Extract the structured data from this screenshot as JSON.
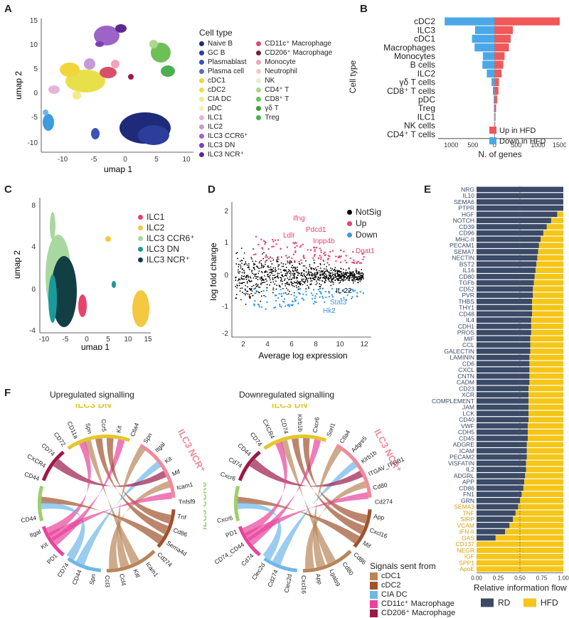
{
  "panels": {
    "A": {
      "label": "A",
      "xlabel": "umap 1",
      "ylabel": "umap 2",
      "xticks": [
        "-10",
        "-5",
        "0",
        "5",
        "10"
      ],
      "yticks": [
        "15",
        "10",
        "5",
        "0",
        "-5",
        "-10"
      ],
      "legend_title": "Cell type",
      "legend": [
        {
          "name": "Naive B",
          "color": "#1f2a7a"
        },
        {
          "name": "GC B",
          "color": "#2c3e99"
        },
        {
          "name": "Plasmablast",
          "color": "#3f51b5"
        },
        {
          "name": "Plasma cell",
          "color": "#5c6bc0"
        },
        {
          "name": "cDC1",
          "color": "#f2d43b"
        },
        {
          "name": "cDC2",
          "color": "#e8e04a"
        },
        {
          "name": "CIA DC",
          "color": "#f5ea8a"
        },
        {
          "name": "pDC",
          "color": "#f7f0b3"
        },
        {
          "name": "ILC1",
          "color": "#e3b5d9"
        },
        {
          "name": "ILC2",
          "color": "#c59ad6"
        },
        {
          "name": "ILC3 CCR6⁺",
          "color": "#9c64c7"
        },
        {
          "name": "ILC3 DN",
          "color": "#7d3fb5"
        },
        {
          "name": "ILC3 NCR⁺",
          "color": "#5b2a91"
        },
        {
          "name": "CD11c⁺ Macrophage",
          "color": "#d94f6a"
        },
        {
          "name": "CD206⁺ Macrophage",
          "color": "#7a1f3a"
        },
        {
          "name": "Monocyte",
          "color": "#f2a5b5"
        },
        {
          "name": "Neutrophil",
          "color": "#f7c6cf"
        },
        {
          "name": "NK",
          "color": "#e5f0d0"
        },
        {
          "name": "CD4⁺ T",
          "color": "#a9d98a"
        },
        {
          "name": "CD8⁺ T",
          "color": "#6fbf57"
        },
        {
          "name": "γδ T",
          "color": "#3e9a3a"
        },
        {
          "name": "Treg",
          "color": "#4caf50"
        }
      ]
    },
    "B": {
      "label": "B",
      "xlabel": "N. of genes",
      "ylabel": "Cell type",
      "legend": [
        {
          "name": "Up in HFD",
          "color": "#f0585a"
        },
        {
          "name": "Down in HFD",
          "color": "#4aa8e8"
        }
      ]
    },
    "C": {
      "label": "C",
      "xlabel": "umap 1",
      "ylabel": "umap 2",
      "xticks": [
        "-10",
        "-5",
        "0",
        "5",
        "10",
        "15"
      ],
      "yticks": [
        "8",
        "4",
        "0",
        "-4"
      ],
      "legend": [
        {
          "name": "ILC1",
          "color": "#e8436b"
        },
        {
          "name": "ILC2",
          "color": "#f5c842"
        },
        {
          "name": "ILC3 CCR6⁺",
          "color": "#a8d8a0"
        },
        {
          "name": "ILC3 DN",
          "color": "#1a9a9a"
        },
        {
          "name": "ILC3 NCR⁺",
          "color": "#123f44"
        }
      ]
    },
    "D": {
      "label": "D",
      "xlabel": "Average log expression",
      "ylabel": "log fold change",
      "xticks": [
        "2",
        "4",
        "6",
        "8",
        "10",
        "12"
      ],
      "yticks": [
        "2",
        "1",
        "0",
        "-1",
        "-2"
      ],
      "legend": [
        {
          "name": "NotSig",
          "color": "#000000"
        },
        {
          "name": "Up",
          "color": "#e8436b"
        },
        {
          "name": "Down",
          "color": "#3d9be0"
        }
      ],
      "annotations": [
        {
          "text": "Ifng",
          "color": "#e8436b"
        },
        {
          "text": "Ldlr",
          "color": "#e8436b"
        },
        {
          "text": "Pdcd1",
          "color": "#e8436b"
        },
        {
          "text": "Inpp4b",
          "color": "#e8436b"
        },
        {
          "text": "Dgat1",
          "color": "#e8436b"
        },
        {
          "text": "IL-22",
          "color": "#000000"
        },
        {
          "text": "Stat3",
          "color": "#3d9be0"
        },
        {
          "text": "Hk2",
          "color": "#3d9be0"
        }
      ]
    },
    "E": {
      "label": "E",
      "xlabel": "Relative information flow",
      "xticks": [
        "0.00",
        "0.25",
        "0.50",
        "0.75",
        "1.00"
      ],
      "legend": [
        {
          "name": "RD",
          "color": "#3b4a66"
        },
        {
          "name": "HFD",
          "color": "#f5c518"
        }
      ]
    },
    "F": {
      "label": "F",
      "title_up": "Upregulated signalling",
      "title_down": "Downregulated signalling",
      "legend_title": "Signals sent from",
      "legend": [
        {
          "name": "cDC1",
          "color": "#b8865a"
        },
        {
          "name": "cDC2",
          "color": "#a0522d"
        },
        {
          "name": "CIA DC",
          "color": "#6fb7e8"
        },
        {
          "name": "CD11c⁺ Macrophage",
          "color": "#e8439b"
        },
        {
          "name": "CD206⁺ Macrophage",
          "color": "#9b1a4a"
        }
      ],
      "up_groups": [
        {
          "name": "ILC3 DN",
          "color": "#e5c62a"
        },
        {
          "name": "ILC3 NCR⁺",
          "color": "#f08a9a"
        },
        {
          "name": "ILC3 CCR6⁺",
          "color": "#9ccf6a"
        }
      ],
      "down_groups": [
        {
          "name": "ILC3 DN",
          "color": "#e5c62a"
        },
        {
          "name": "ILC3 NCR⁺",
          "color": "#f08a9a"
        },
        {
          "name": "ILC3 CCR6⁺",
          "color": "#9ccf6a"
        }
      ],
      "up_labels": [
        "CD44",
        "CXCR4",
        "CD74",
        "CD72",
        "CD11a",
        "Spn",
        "Ccr5",
        "Kit",
        "Ctla4",
        "Spn",
        "Itgal",
        "Kit",
        "Mif",
        "Icam1",
        "Tnfsf9",
        "Tnf",
        "Cd86",
        "Sema4d",
        "Cd274",
        "Icam1",
        "Kitl",
        "Ccl4",
        "Ccl3",
        "Spn",
        "CD44",
        "CD74",
        "PD1",
        "Kit",
        "Itgal",
        "CD44"
      ],
      "down_labels": [
        "Cxcr6",
        "Cd74",
        "CD44",
        "CD74",
        "CXCR4",
        "CD74",
        "Klrb1b",
        "Cxcr6",
        "Sorl1",
        "Ctla4",
        "Adgre5",
        "Klrb1b",
        "ITGAV_ITGB1",
        "Cd80",
        "Cd274",
        "App",
        "Cxcl16",
        "Mif",
        "Cd86",
        "Cd80",
        "Lgals9",
        "App",
        "Cxcl16",
        "Clec2d",
        "Cd274",
        "Clec2d",
        "Cd74",
        "CD74_CD44",
        "PD1",
        "Cxcr6"
      ]
    }
  },
  "chart_data": [
    {
      "type": "bar",
      "title": "B",
      "xlabel": "N. of genes",
      "ylabel": "Cell type",
      "categories": [
        "cDC2",
        "ILC3",
        "cDC1",
        "Macrophages",
        "Monocytes",
        "B cells",
        "ILC2",
        "γδ T cells",
        "CD8⁺ T cells",
        "pDC",
        "Treg",
        "ILC1",
        "NK cells",
        "CD4⁺ T cells"
      ],
      "series": [
        {
          "name": "Up in HFD",
          "values": [
            1500,
            420,
            370,
            330,
            230,
            200,
            160,
            100,
            90,
            60,
            35,
            20,
            15,
            10
          ]
        },
        {
          "name": "Down in HFD",
          "values": [
            1150,
            450,
            520,
            460,
            270,
            280,
            180,
            70,
            40,
            20,
            15,
            10,
            8,
            5
          ]
        }
      ],
      "xticks": [
        "1000",
        "500",
        "0",
        "500",
        "1000",
        "1500"
      ],
      "xlim": [
        -1300,
        1550
      ]
    },
    {
      "type": "bar",
      "title": "E",
      "xlabel": "Relative information flow",
      "categories": [
        "NRG",
        "IL10",
        "SEMA6",
        "PTPR",
        "HGF",
        "NOTCH",
        "CD39",
        "CD96",
        "MHC-II",
        "PECAM1",
        "SEMA7",
        "NECTIN",
        "BST2",
        "IL16",
        "CD80",
        "TGFb",
        "CD52",
        "PVR",
        "THBS",
        "THY1",
        "CD48",
        "IL4",
        "CDH1",
        "PROS",
        "MIF",
        "CCL",
        "GALECTIN",
        "LAMININ",
        "CD6",
        "CXCL",
        "CNTN",
        "CADM",
        "CD23",
        "XCR",
        "COMPLEMENT",
        "JAM",
        "LCK",
        "CD40",
        "VWF",
        "CDH5",
        "CD45",
        "ADGRE",
        "ICAM",
        "PECAM2",
        "VISFATIN",
        "IL2",
        "ADGRL",
        "APP",
        "CD86",
        "FN1",
        "GRN",
        "SEMA3",
        "TNF",
        "SIRP",
        "VCAM",
        "IFN-II",
        "GAS",
        "CD137",
        "NEGR",
        "IGF",
        "SPP1",
        "ApoE"
      ],
      "hfd_highlight_from": "SEMA3",
      "series": [
        {
          "name": "RD",
          "values": [
            1.0,
            1.0,
            1.0,
            1.0,
            0.93,
            0.86,
            0.81,
            0.77,
            0.74,
            0.72,
            0.71,
            0.7,
            0.69,
            0.68,
            0.67,
            0.66,
            0.65,
            0.65,
            0.64,
            0.64,
            0.64,
            0.63,
            0.63,
            0.63,
            0.62,
            0.62,
            0.62,
            0.61,
            0.61,
            0.61,
            0.61,
            0.61,
            0.6,
            0.6,
            0.6,
            0.6,
            0.6,
            0.6,
            0.59,
            0.59,
            0.59,
            0.58,
            0.58,
            0.58,
            0.57,
            0.57,
            0.56,
            0.55,
            0.54,
            0.52,
            0.5,
            0.48,
            0.45,
            0.42,
            0.38,
            0.33,
            0.22,
            0.0,
            0.0,
            0.0,
            0.0,
            0.0
          ]
        },
        {
          "name": "HFD",
          "values": [
            0.0,
            0.0,
            0.0,
            0.0,
            0.07,
            0.14,
            0.19,
            0.23,
            0.26,
            0.28,
            0.29,
            0.3,
            0.31,
            0.32,
            0.33,
            0.34,
            0.35,
            0.35,
            0.36,
            0.36,
            0.36,
            0.37,
            0.37,
            0.37,
            0.38,
            0.38,
            0.38,
            0.39,
            0.39,
            0.39,
            0.39,
            0.39,
            0.4,
            0.4,
            0.4,
            0.4,
            0.4,
            0.4,
            0.41,
            0.41,
            0.41,
            0.42,
            0.42,
            0.42,
            0.43,
            0.43,
            0.44,
            0.45,
            0.46,
            0.48,
            0.5,
            0.52,
            0.55,
            0.58,
            0.62,
            0.67,
            0.78,
            1.0,
            1.0,
            1.0,
            1.0,
            1.0
          ]
        }
      ],
      "xlim": [
        0,
        1
      ]
    }
  ]
}
